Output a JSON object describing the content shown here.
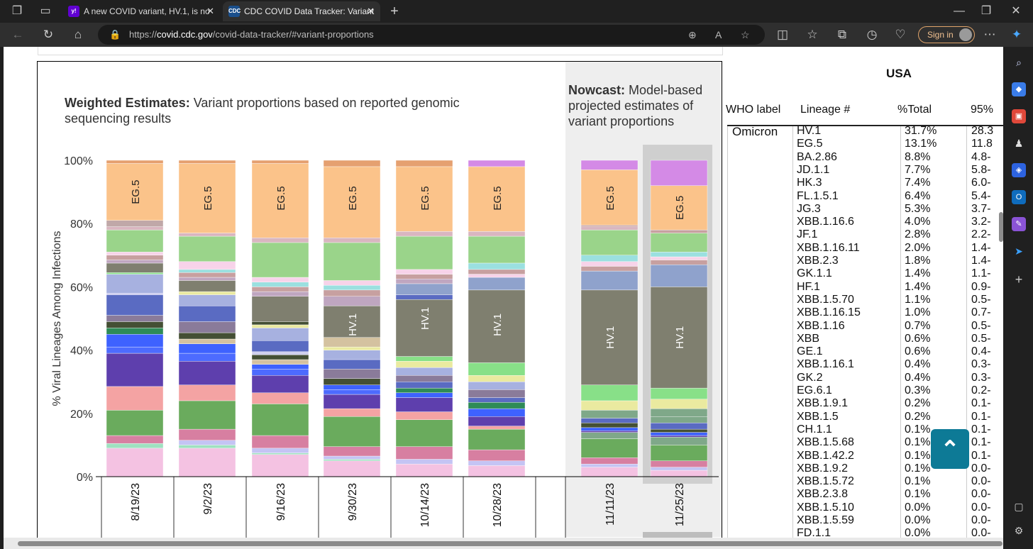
{
  "browser": {
    "tabs": [
      {
        "title": "A new COVID variant, HV.1, is no",
        "favicon": "y!"
      },
      {
        "title": "CDC COVID Data Tracker: Variant",
        "favicon": "CDC"
      }
    ],
    "url_prefix": "https://",
    "url_host": "covid.cdc.gov",
    "url_path": "/covid-data-tracker/#variant-proportions",
    "signin_label": "Sign in"
  },
  "chart": {
    "title_bold": "Weighted Estimates:",
    "title_rest": " Variant proportions based on reported genomic sequencing results",
    "nowcast_bold": "Nowcast:",
    "nowcast_rest": " Model-based projected estimates of variant proportions"
  },
  "chart_data": {
    "type": "bar",
    "stacked": true,
    "title": "Weighted Estimates: Variant proportions based on reported genomic sequencing results",
    "ylabel": "% Viral Lineages Among Infections",
    "ylim": [
      0,
      100
    ],
    "yticks": [
      "0%",
      "20%",
      "40%",
      "60%",
      "80%",
      "100%"
    ],
    "categories": [
      "8/19/23",
      "9/2/23",
      "9/16/23",
      "9/30/23",
      "10/14/23",
      "10/28/23",
      "11/11/23",
      "11/25/23"
    ],
    "nowcast_categories": [
      "11/11/23",
      "11/25/23"
    ],
    "segment_labels": [
      {
        "category": "8/19/23",
        "label": "EG.5"
      },
      {
        "category": "9/2/23",
        "label": "EG.5"
      },
      {
        "category": "9/16/23",
        "label": "EG.5"
      },
      {
        "category": "9/30/23",
        "label": "EG.5"
      },
      {
        "category": "9/30/23",
        "label": "HV.1"
      },
      {
        "category": "10/14/23",
        "label": "EG.5"
      },
      {
        "category": "10/14/23",
        "label": "HV.1"
      },
      {
        "category": "10/28/23",
        "label": "EG.5"
      },
      {
        "category": "10/28/23",
        "label": "HV.1"
      },
      {
        "category": "11/11/23",
        "label": "EG.5"
      },
      {
        "category": "11/11/23",
        "label": "HV.1"
      },
      {
        "category": "11/25/23",
        "label": "EG.5"
      },
      {
        "category": "11/25/23",
        "label": "HV.1"
      }
    ],
    "bars": [
      [
        [
          0,
          9,
          "#f4c2e2"
        ],
        [
          9,
          10.5,
          "#9fe0c0"
        ],
        [
          10.5,
          13,
          "#d77fa1"
        ],
        [
          13,
          21,
          "#6aab5d"
        ],
        [
          21,
          28.5,
          "#f4a3a3"
        ],
        [
          28.5,
          39,
          "#5e3fad"
        ],
        [
          39,
          41,
          "#4d6bff"
        ],
        [
          41,
          45,
          "#3e62ff"
        ],
        [
          45,
          47,
          "#2e8b57"
        ],
        [
          47,
          49,
          "#444f34"
        ],
        [
          49,
          51,
          "#8a7b9a"
        ],
        [
          51,
          57.5,
          "#5a6bc2"
        ],
        [
          57.5,
          58,
          "#c5c5ee"
        ],
        [
          58,
          64,
          "#a7b1e0"
        ],
        [
          64,
          64.5,
          "#88e088"
        ],
        [
          64.5,
          67.5,
          "#7f7f6f"
        ],
        [
          67.5,
          68.5,
          "#bfa6c0"
        ],
        [
          68.5,
          70,
          "#c7a0a0"
        ],
        [
          70,
          71,
          "#f7d3e9"
        ],
        [
          71,
          78,
          "#9ad48a"
        ],
        [
          78,
          79,
          "#d9b6c0"
        ],
        [
          79,
          81,
          "#c0a8a8"
        ],
        [
          81,
          99,
          "#fbc38a"
        ],
        [
          99,
          100,
          "#e5a070"
        ]
      ],
      [
        [
          0,
          9,
          "#f4c2e2"
        ],
        [
          9,
          10,
          "#9fe0c0"
        ],
        [
          10,
          11.5,
          "#c4c4f4"
        ],
        [
          11.5,
          15,
          "#d77fa1"
        ],
        [
          15,
          24,
          "#6aab5d"
        ],
        [
          24,
          29,
          "#f4a3a3"
        ],
        [
          29,
          36.5,
          "#5e3fad"
        ],
        [
          36.5,
          39,
          "#4d6bff"
        ],
        [
          39,
          42,
          "#3e62ff"
        ],
        [
          42,
          43.5,
          "#d4c2a0"
        ],
        [
          43.5,
          45.5,
          "#444f34"
        ],
        [
          45.5,
          49,
          "#8a7b9a"
        ],
        [
          49,
          54,
          "#5a6bc2"
        ],
        [
          54,
          57.5,
          "#a7b1e0"
        ],
        [
          57.5,
          58.5,
          "#eaeaa0"
        ],
        [
          58.5,
          62,
          "#7f7f6f"
        ],
        [
          62,
          63,
          "#bfa6c0"
        ],
        [
          63,
          64.5,
          "#c7a0a0"
        ],
        [
          64.5,
          65.5,
          "#9be0e0"
        ],
        [
          65.5,
          68,
          "#f7d3e9"
        ],
        [
          68,
          76,
          "#9ad48a"
        ],
        [
          76,
          77,
          "#d9b6c0"
        ],
        [
          77,
          99,
          "#fbc38a"
        ],
        [
          99,
          100,
          "#e5a070"
        ]
      ],
      [
        [
          0,
          7,
          "#f4c2e2"
        ],
        [
          7,
          7.5,
          "#9fe0c0"
        ],
        [
          7.5,
          9,
          "#c4c4f4"
        ],
        [
          9,
          13,
          "#d77fa1"
        ],
        [
          13,
          23,
          "#6aab5d"
        ],
        [
          23,
          26.5,
          "#f4a3a3"
        ],
        [
          26.5,
          32,
          "#5e3fad"
        ],
        [
          32,
          34,
          "#4d6bff"
        ],
        [
          34,
          35.5,
          "#3e62ff"
        ],
        [
          35.5,
          37,
          "#d4c2a0"
        ],
        [
          37,
          38.5,
          "#444f34"
        ],
        [
          38.5,
          39.5,
          "#d0d0ee"
        ],
        [
          39.5,
          43,
          "#5a6bc2"
        ],
        [
          43,
          47,
          "#a7b1e0"
        ],
        [
          47,
          48,
          "#eaeaa0"
        ],
        [
          48,
          49,
          "#444f34"
        ],
        [
          49,
          57,
          "#7f7f6f"
        ],
        [
          57,
          58.5,
          "#bfa6c0"
        ],
        [
          58.5,
          60,
          "#c7a0a0"
        ],
        [
          60,
          61.5,
          "#9be0e0"
        ],
        [
          61.5,
          63,
          "#f7d3e9"
        ],
        [
          63,
          74,
          "#9ad48a"
        ],
        [
          74,
          75.5,
          "#d9b6c0"
        ],
        [
          75.5,
          99,
          "#fbc38a"
        ],
        [
          99,
          100,
          "#e5a070"
        ]
      ],
      [
        [
          0,
          5,
          "#f4c2e2"
        ],
        [
          5,
          5.5,
          "#9fe0c0"
        ],
        [
          5.5,
          6.5,
          "#c4c4f4"
        ],
        [
          6.5,
          9.5,
          "#d77fa1"
        ],
        [
          9.5,
          19,
          "#6aab5d"
        ],
        [
          19,
          21.5,
          "#f4a3a3"
        ],
        [
          21.5,
          26,
          "#5e3fad"
        ],
        [
          26,
          27.5,
          "#4d6bff"
        ],
        [
          27.5,
          29,
          "#3e62ff"
        ],
        [
          29,
          31,
          "#444f34"
        ],
        [
          31,
          34,
          "#8a7b9a"
        ],
        [
          34,
          37,
          "#5a6bc2"
        ],
        [
          37,
          40,
          "#a7b1e0"
        ],
        [
          40,
          41,
          "#eaeaa0"
        ],
        [
          41,
          44,
          "#d4c2a0"
        ],
        [
          44,
          54,
          "#7f7f6f"
        ],
        [
          54,
          57,
          "#bfa6c0"
        ],
        [
          57,
          59,
          "#c7a0a0"
        ],
        [
          59,
          60.5,
          "#9be0e0"
        ],
        [
          60.5,
          62,
          "#f7d3e9"
        ],
        [
          62,
          74,
          "#9ad48a"
        ],
        [
          74,
          75.5,
          "#d9b6c0"
        ],
        [
          75.5,
          98,
          "#fbc38a"
        ],
        [
          98,
          100,
          "#e5a070"
        ]
      ],
      [
        [
          0,
          4,
          "#f4c2e2"
        ],
        [
          4,
          5.5,
          "#c4c4f4"
        ],
        [
          5.5,
          9.5,
          "#d77fa1"
        ],
        [
          9.5,
          18,
          "#6aab5d"
        ],
        [
          18,
          20.5,
          "#f4a3a3"
        ],
        [
          20.5,
          25,
          "#5e3fad"
        ],
        [
          25,
          26.5,
          "#3e62ff"
        ],
        [
          26.5,
          28,
          "#2e8b57"
        ],
        [
          28,
          30,
          "#5a6bc2"
        ],
        [
          30,
          32,
          "#8a7b9a"
        ],
        [
          32,
          34.5,
          "#a7b1e0"
        ],
        [
          34.5,
          36.5,
          "#eaeaa0"
        ],
        [
          36.5,
          38,
          "#88e088"
        ],
        [
          38,
          56,
          "#7f7f6f"
        ],
        [
          56,
          57.5,
          "#5a6bc2"
        ],
        [
          57.5,
          61,
          "#8fa2cc"
        ],
        [
          61,
          62.5,
          "#bfa6c0"
        ],
        [
          62.5,
          64,
          "#c7a0a0"
        ],
        [
          64,
          65.5,
          "#f7d3e9"
        ],
        [
          65.5,
          76,
          "#9ad48a"
        ],
        [
          76,
          77.5,
          "#d9b6c0"
        ],
        [
          77.5,
          98,
          "#fbc38a"
        ],
        [
          98,
          100,
          "#e5a070"
        ]
      ],
      [
        [
          0,
          3.5,
          "#f4c2e2"
        ],
        [
          3.5,
          5,
          "#c4c4f4"
        ],
        [
          5,
          8.5,
          "#d77fa1"
        ],
        [
          8.5,
          15,
          "#6aab5d"
        ],
        [
          15,
          16,
          "#f4a3a3"
        ],
        [
          16,
          19,
          "#5e3fad"
        ],
        [
          19,
          21.5,
          "#3e62ff"
        ],
        [
          21.5,
          23.5,
          "#2e8b57"
        ],
        [
          23.5,
          25,
          "#5a6bc2"
        ],
        [
          25,
          27.5,
          "#8a7b9a"
        ],
        [
          27.5,
          30,
          "#a7b1e0"
        ],
        [
          30,
          32,
          "#eaeaa0"
        ],
        [
          32,
          36,
          "#88e088"
        ],
        [
          36,
          59,
          "#7f7f6f"
        ],
        [
          59,
          63,
          "#8fa2cc"
        ],
        [
          63,
          64,
          "#f7d3e9"
        ],
        [
          64,
          65.5,
          "#c7a0a0"
        ],
        [
          65.5,
          67.5,
          "#9be0e0"
        ],
        [
          67.5,
          76,
          "#9ad48a"
        ],
        [
          76,
          77.5,
          "#d9b6c0"
        ],
        [
          77.5,
          98,
          "#fbc38a"
        ],
        [
          98,
          100,
          "#d48ae6"
        ]
      ],
      [
        [
          0,
          3,
          "#f4c2e2"
        ],
        [
          3,
          4,
          "#c4c4f4"
        ],
        [
          4,
          6,
          "#d77fa1"
        ],
        [
          6,
          12,
          "#6aab5d"
        ],
        [
          12,
          14,
          "#7fa889"
        ],
        [
          14,
          14.5,
          "#5e3fad"
        ],
        [
          14.5,
          15.5,
          "#3e62ff"
        ],
        [
          15.5,
          17,
          "#444f34"
        ],
        [
          17,
          18.5,
          "#5a6bc2"
        ],
        [
          18.5,
          21,
          "#7fa889"
        ],
        [
          21,
          24,
          "#eaeaa0"
        ],
        [
          24,
          29,
          "#88e088"
        ],
        [
          29,
          59,
          "#7f7f6f"
        ],
        [
          59,
          65,
          "#8fa2cc"
        ],
        [
          65,
          66.5,
          "#c7a0a0"
        ],
        [
          66.5,
          68,
          "#f7d3e9"
        ],
        [
          68,
          70,
          "#9be0e0"
        ],
        [
          70,
          78,
          "#9ad48a"
        ],
        [
          78,
          79,
          "#d9b6c0"
        ],
        [
          79,
          79.5,
          "#c7a0a0"
        ],
        [
          79.5,
          97,
          "#fbc38a"
        ],
        [
          97,
          100,
          "#d48ae6"
        ]
      ],
      [
        [
          0,
          2,
          "#f4c2e2"
        ],
        [
          2,
          3,
          "#c4c4f4"
        ],
        [
          3,
          5,
          "#d77fa1"
        ],
        [
          5,
          10,
          "#6aab5d"
        ],
        [
          10,
          12.5,
          "#7fa889"
        ],
        [
          12.5,
          13,
          "#5e3fad"
        ],
        [
          13,
          14,
          "#3e62ff"
        ],
        [
          14,
          15,
          "#444f34"
        ],
        [
          15,
          17,
          "#5a6bc2"
        ],
        [
          17,
          19,
          "#7fa889"
        ],
        [
          19,
          21.5,
          "#7fa889"
        ],
        [
          21.5,
          24.5,
          "#eaeaa0"
        ],
        [
          24.5,
          28,
          "#88e088"
        ],
        [
          28,
          60,
          "#7f7f6f"
        ],
        [
          60,
          67,
          "#8fa2cc"
        ],
        [
          67,
          68.5,
          "#c7a0a0"
        ],
        [
          68.5,
          69.5,
          "#f7d3e9"
        ],
        [
          69.5,
          71,
          "#9be0e0"
        ],
        [
          71,
          77,
          "#9ad48a"
        ],
        [
          77,
          78,
          "#c7a0a0"
        ],
        [
          78,
          92,
          "#fbc38a"
        ],
        [
          92,
          100,
          "#d48ae6"
        ]
      ]
    ]
  },
  "table": {
    "title": "USA",
    "headers": [
      "WHO label",
      "Lineage #",
      "%Total",
      "95%"
    ],
    "who_label": "Omicron",
    "rows": [
      [
        "HV.1",
        "31.7%",
        "28.3"
      ],
      [
        "EG.5",
        "13.1%",
        "11.8"
      ],
      [
        "BA.2.86",
        "8.8%",
        "4.8-"
      ],
      [
        "JD.1.1",
        "7.7%",
        "5.8-"
      ],
      [
        "HK.3",
        "7.4%",
        "6.0-"
      ],
      [
        "FL.1.5.1",
        "6.4%",
        "5.4-"
      ],
      [
        "JG.3",
        "5.3%",
        "3.7-"
      ],
      [
        "XBB.1.16.6",
        "4.0%",
        "3.2-"
      ],
      [
        "JF.1",
        "2.8%",
        "2.2-"
      ],
      [
        "XBB.1.16.11",
        "2.0%",
        "1.4-"
      ],
      [
        "XBB.2.3",
        "1.8%",
        "1.4-"
      ],
      [
        "GK.1.1",
        "1.4%",
        "1.1-"
      ],
      [
        "HF.1",
        "1.4%",
        "0.9-"
      ],
      [
        "XBB.1.5.70",
        "1.1%",
        "0.5-"
      ],
      [
        "XBB.1.16.15",
        "1.0%",
        "0.7-"
      ],
      [
        "XBB.1.16",
        "0.7%",
        "0.5-"
      ],
      [
        "XBB",
        "0.6%",
        "0.5-"
      ],
      [
        "GE.1",
        "0.6%",
        "0.4-"
      ],
      [
        "XBB.1.16.1",
        "0.4%",
        "0.3-"
      ],
      [
        "GK.2",
        "0.4%",
        "0.3-"
      ],
      [
        "EG.6.1",
        "0.3%",
        "0.2-"
      ],
      [
        "XBB.1.9.1",
        "0.2%",
        "0.1-"
      ],
      [
        "XBB.1.5",
        "0.2%",
        "0.1-"
      ],
      [
        "CH.1.1",
        "0.1%",
        "0.1-"
      ],
      [
        "XBB.1.5.68",
        "0.1%",
        "0.1-"
      ],
      [
        "XBB.1.42.2",
        "0.1%",
        "0.1-"
      ],
      [
        "XBB.1.9.2",
        "0.1%",
        "0.0-"
      ],
      [
        "XBB.1.5.72",
        "0.1%",
        "0.0-"
      ],
      [
        "XBB.2.3.8",
        "0.1%",
        "0.0-"
      ],
      [
        "XBB.1.5.10",
        "0.0%",
        "0.0-"
      ],
      [
        "XBB.1.5.59",
        "0.0%",
        "0.0-"
      ],
      [
        "FD.1.1",
        "0.0%",
        "0.0-"
      ]
    ]
  }
}
